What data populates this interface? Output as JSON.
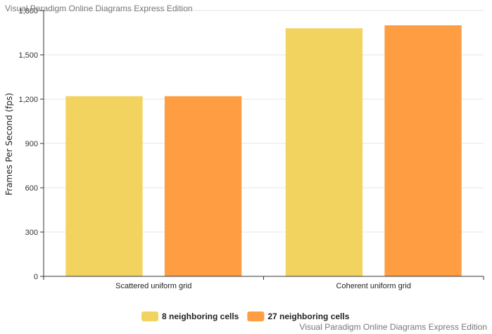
{
  "watermark": "Visual Paradigm Online Diagrams Express Edition",
  "chart_data": {
    "type": "bar",
    "title": "",
    "xlabel": "",
    "ylabel": "Frames Per Second (fps)",
    "categories": [
      "Scattered uniform grid",
      "Coherent uniform grid"
    ],
    "series": [
      {
        "name": "8 neighboring cells",
        "values": [
          1220,
          1680
        ],
        "color": "#f2d360"
      },
      {
        "name": "27 neighboring cells",
        "values": [
          1220,
          1700
        ],
        "color": "#ff9d42"
      }
    ],
    "ylim": [
      0,
      1800
    ],
    "yticks": [
      0,
      300,
      600,
      900,
      1200,
      1500,
      1800
    ],
    "ytick_labels": [
      "0",
      "300",
      "600",
      "900",
      "1,200",
      "1,500",
      "1,800"
    ],
    "grid": true,
    "legend_position": "bottom-center"
  }
}
